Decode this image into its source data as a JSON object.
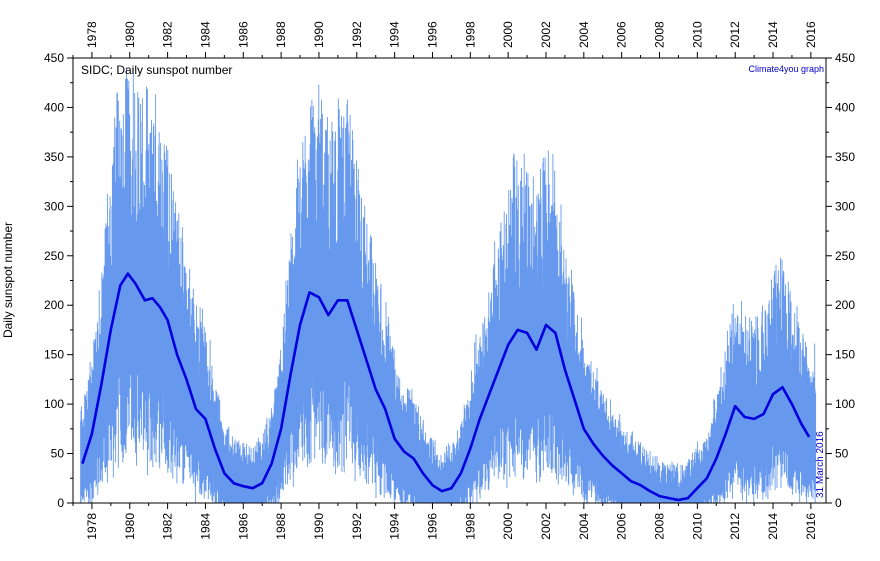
{
  "chart_data": {
    "type": "line",
    "title": "SIDC; Daily sunspot number",
    "credit": "Climate4you graph",
    "date_note": "31 March 2016",
    "ylabel": "Daily sunspot number",
    "xlabel": "",
    "xlim": [
      1977.0,
      2016.8
    ],
    "ylim": [
      0,
      450
    ],
    "x_ticks": [
      "1978",
      "1980",
      "1982",
      "1984",
      "1986",
      "1988",
      "1990",
      "1992",
      "1994",
      "1996",
      "1998",
      "2000",
      "2002",
      "2004",
      "2006",
      "2008",
      "2010",
      "2012",
      "2014",
      "2016"
    ],
    "y_ticks": [
      "0",
      "50",
      "100",
      "150",
      "200",
      "250",
      "300",
      "350",
      "400",
      "450"
    ],
    "grid": false,
    "legend": "none",
    "colors": {
      "daily": "#6699ee",
      "smoothed": "#0000dd",
      "credit_text": "#0000cc"
    },
    "series": [
      {
        "style": "daily (thin light blue)",
        "x_start": 1977.4,
        "x_end": 2016.25,
        "envelope_note": "daily values approximated by a high/low envelope around the smoothed curve",
        "peaks": [
          [
            1979.9,
            430
          ],
          [
            1989.6,
            385
          ],
          [
            1991.5,
            410
          ],
          [
            2000.3,
            355
          ],
          [
            2001.9,
            350
          ],
          [
            2014.3,
            220
          ]
        ]
      },
      {
        "style": "smoothed (thick dark blue)",
        "x": [
          1977.5,
          1978.0,
          1978.5,
          1979.0,
          1979.5,
          1979.9,
          1980.3,
          1980.8,
          1981.2,
          1981.6,
          1982.0,
          1982.5,
          1983.0,
          1983.5,
          1984.0,
          1984.5,
          1985.0,
          1985.5,
          1986.0,
          1986.5,
          1987.0,
          1987.5,
          1988.0,
          1988.5,
          1989.0,
          1989.5,
          1990.0,
          1990.5,
          1991.0,
          1991.5,
          1992.0,
          1992.5,
          1993.0,
          1993.5,
          1994.0,
          1994.5,
          1995.0,
          1995.5,
          1996.0,
          1996.5,
          1997.0,
          1997.5,
          1998.0,
          1998.5,
          1999.0,
          1999.5,
          2000.0,
          2000.5,
          2001.0,
          2001.5,
          2002.0,
          2002.5,
          2003.0,
          2003.5,
          2004.0,
          2004.5,
          2005.0,
          2005.5,
          2006.0,
          2006.5,
          2007.0,
          2007.5,
          2008.0,
          2008.5,
          2009.0,
          2009.5,
          2010.0,
          2010.5,
          2011.0,
          2011.5,
          2012.0,
          2012.5,
          2013.0,
          2013.5,
          2014.0,
          2014.5,
          2015.0,
          2015.5,
          2015.9
        ],
        "values": [
          40,
          70,
          120,
          175,
          220,
          232,
          222,
          205,
          207,
          198,
          185,
          150,
          125,
          95,
          85,
          55,
          30,
          20,
          17,
          15,
          20,
          40,
          75,
          130,
          180,
          213,
          208,
          190,
          205,
          205,
          175,
          145,
          115,
          95,
          65,
          52,
          45,
          30,
          18,
          12,
          15,
          30,
          55,
          85,
          110,
          135,
          160,
          175,
          172,
          155,
          180,
          172,
          135,
          105,
          75,
          60,
          48,
          38,
          30,
          22,
          18,
          12,
          7,
          5,
          3,
          5,
          15,
          25,
          45,
          70,
          98,
          87,
          85,
          90,
          110,
          117,
          100,
          80,
          67
        ]
      }
    ]
  }
}
